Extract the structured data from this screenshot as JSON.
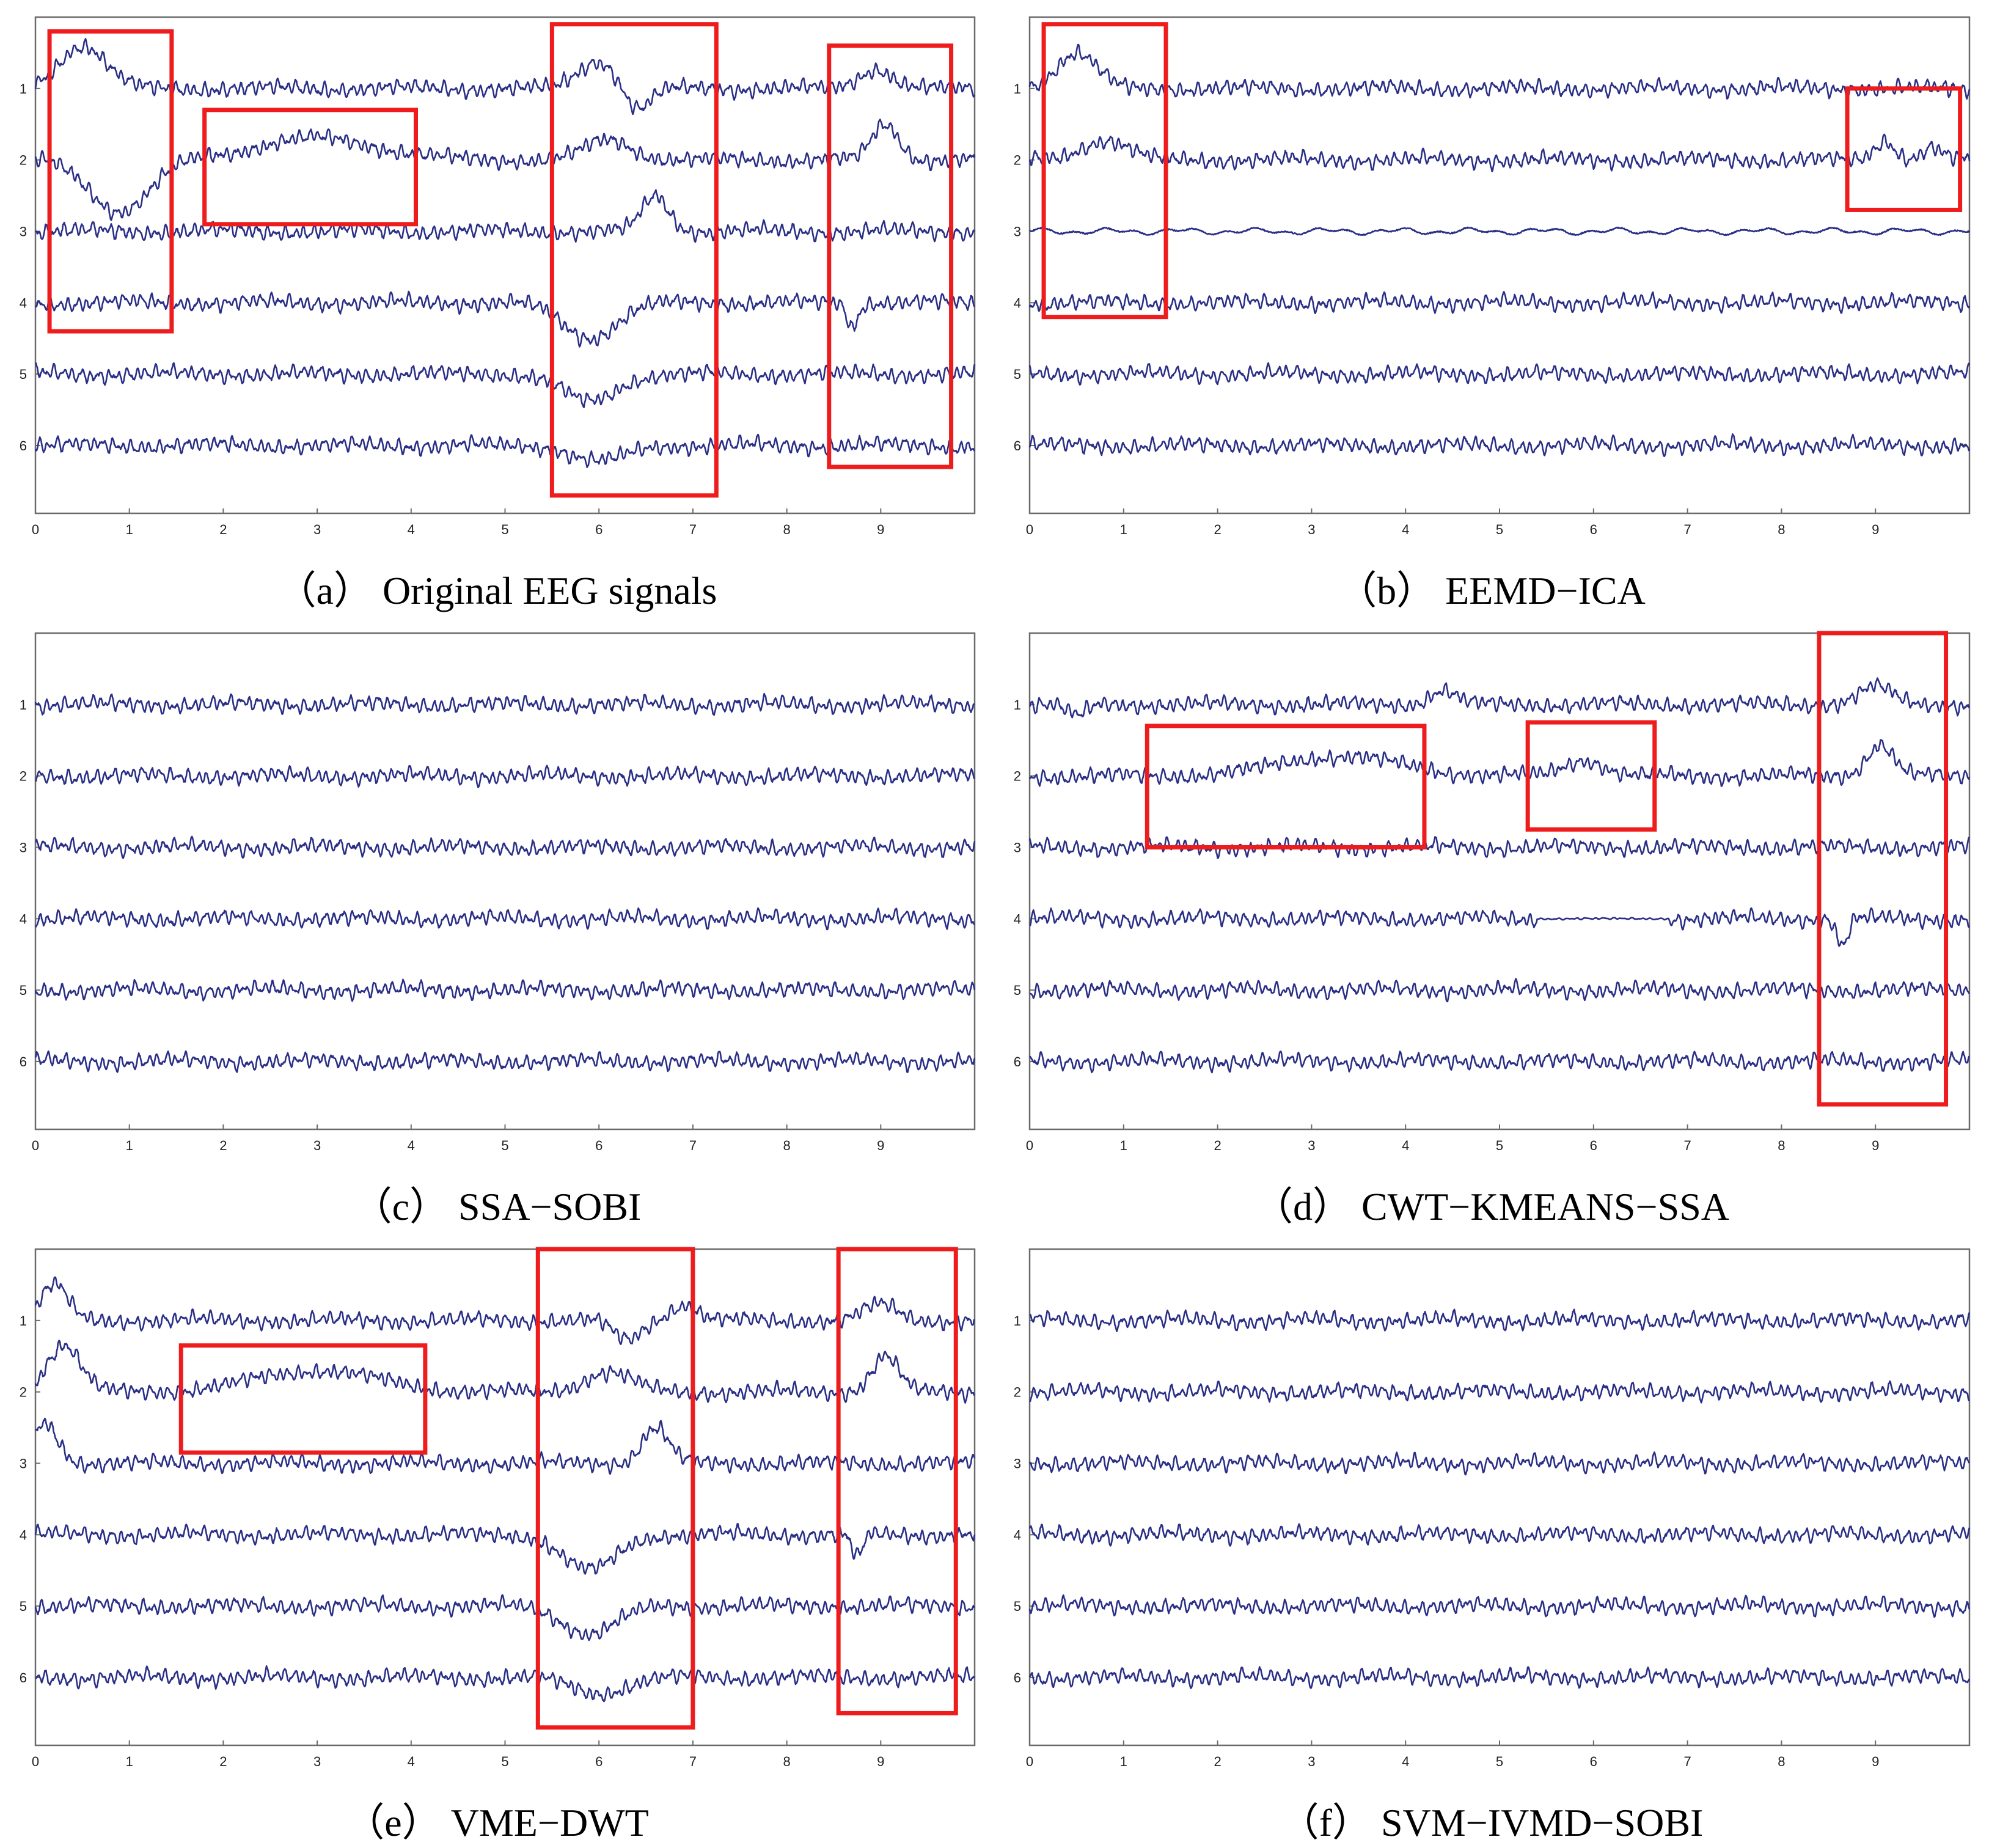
{
  "chart_data": [
    {
      "type": "line",
      "panel": "a",
      "caption": "（a） Original EEG signals",
      "x_ticks": [
        "0",
        "1",
        "2",
        "3",
        "4",
        "5",
        "6",
        "7",
        "8",
        "9"
      ],
      "channels": [
        "1",
        "2",
        "3",
        "4",
        "5",
        "6"
      ],
      "xlim": [
        0,
        10
      ],
      "grid": false,
      "highlight_boxes": [
        {
          "x": [
            0.15,
            1.45
          ],
          "channels": [
            0.2,
            4.4
          ]
        },
        {
          "x": [
            1.8,
            4.05
          ],
          "channels": [
            1.3,
            2.9
          ]
        },
        {
          "x": [
            5.5,
            7.25
          ],
          "channels": [
            0.1,
            6.7
          ]
        },
        {
          "x": [
            8.45,
            9.75
          ],
          "channels": [
            0.4,
            6.3
          ]
        }
      ],
      "artifacts": [
        {
          "channel": 1,
          "x": 0.5,
          "amp": 1.1,
          "width": 0.35
        },
        {
          "channel": 2,
          "x": 0.9,
          "amp": -1.3,
          "width": 0.45
        },
        {
          "channel": 2,
          "x": 3.0,
          "amp": 0.55,
          "width": 0.9
        },
        {
          "channel": 1,
          "x": 6.0,
          "amp": 0.7,
          "width": 0.3
        },
        {
          "channel": 1,
          "x": 6.4,
          "amp": -0.6,
          "width": 0.2
        },
        {
          "channel": 2,
          "x": 6.1,
          "amp": 0.5,
          "width": 0.35
        },
        {
          "channel": 3,
          "x": 6.6,
          "amp": 0.9,
          "width": 0.2
        },
        {
          "channel": 4,
          "x": 5.9,
          "amp": -0.9,
          "width": 0.4
        },
        {
          "channel": 5,
          "x": 5.9,
          "amp": -0.7,
          "width": 0.4
        },
        {
          "channel": 6,
          "x": 6.0,
          "amp": -0.4,
          "width": 0.4
        },
        {
          "channel": 1,
          "x": 8.95,
          "amp": 0.5,
          "width": 0.25
        },
        {
          "channel": 2,
          "x": 9.05,
          "amp": 0.9,
          "width": 0.2
        },
        {
          "channel": 4,
          "x": 8.7,
          "amp": -0.6,
          "width": 0.08
        }
      ]
    },
    {
      "type": "line",
      "panel": "b",
      "caption": "（b） EEMD−ICA",
      "x_ticks": [
        "0",
        "1",
        "2",
        "3",
        "4",
        "5",
        "6",
        "7",
        "8",
        "9"
      ],
      "channels": [
        "1",
        "2",
        "3",
        "4",
        "5",
        "6"
      ],
      "xlim": [
        0,
        10
      ],
      "grid": false,
      "highlight_boxes": [
        {
          "x": [
            0.15,
            1.45
          ],
          "channels": [
            0.1,
            4.2
          ]
        },
        {
          "x": [
            8.7,
            9.9
          ],
          "channels": [
            1.0,
            2.7
          ]
        }
      ],
      "artifacts": [
        {
          "channel": 1,
          "x": 0.5,
          "amp": 0.9,
          "width": 0.3
        },
        {
          "channel": 2,
          "x": 0.8,
          "amp": 0.5,
          "width": 0.35
        },
        {
          "channel": 2,
          "x": 9.1,
          "amp": 0.5,
          "width": 0.15
        },
        {
          "channel": 2,
          "x": 9.6,
          "amp": 0.3,
          "width": 0.15
        }
      ],
      "smooth_channels": [
        3
      ]
    },
    {
      "type": "line",
      "panel": "c",
      "caption": "（c） SSA−SOBI",
      "x_ticks": [
        "0",
        "1",
        "2",
        "3",
        "4",
        "5",
        "6",
        "7",
        "8",
        "9"
      ],
      "channels": [
        "1",
        "2",
        "3",
        "4",
        "5",
        "6"
      ],
      "xlim": [
        0,
        10
      ],
      "grid": false,
      "highlight_boxes": [],
      "artifacts": []
    },
    {
      "type": "line",
      "panel": "d",
      "caption": "（d） CWT−KMEANS−SSA",
      "x_ticks": [
        "0",
        "1",
        "2",
        "3",
        "4",
        "5",
        "6",
        "7",
        "8",
        "9"
      ],
      "channels": [
        "1",
        "2",
        "3",
        "4",
        "5",
        "6"
      ],
      "xlim": [
        0,
        10
      ],
      "grid": false,
      "highlight_boxes": [
        {
          "x": [
            1.25,
            4.2
          ],
          "channels": [
            1.3,
            3.0
          ]
        },
        {
          "x": [
            5.3,
            6.65
          ],
          "channels": [
            1.25,
            2.75
          ]
        },
        {
          "x": [
            8.4,
            9.75
          ],
          "channels": [
            0.0,
            6.6
          ]
        }
      ],
      "artifacts": [
        {
          "channel": 1,
          "x": 0.5,
          "amp": -0.3,
          "width": 0.15
        },
        {
          "channel": 1,
          "x": 4.4,
          "amp": 0.35,
          "width": 0.2
        },
        {
          "channel": 2,
          "x": 3.3,
          "amp": 0.5,
          "width": 0.9
        },
        {
          "channel": 2,
          "x": 5.9,
          "amp": 0.4,
          "width": 0.3
        },
        {
          "channel": 1,
          "x": 9.0,
          "amp": 0.45,
          "width": 0.25
        },
        {
          "channel": 2,
          "x": 9.05,
          "amp": 0.8,
          "width": 0.2
        },
        {
          "channel": 4,
          "x": 8.65,
          "amp": -0.7,
          "width": 0.08
        }
      ],
      "flat_segments": [
        {
          "channel": 4,
          "x": [
            5.4,
            6.8
          ]
        }
      ]
    },
    {
      "type": "line",
      "panel": "e",
      "caption": "（e） VME−DWT",
      "x_ticks": [
        "0",
        "1",
        "2",
        "3",
        "4",
        "5",
        "6",
        "7",
        "8",
        "9"
      ],
      "channels": [
        "1",
        "2",
        "3",
        "4",
        "5",
        "6"
      ],
      "xlim": [
        0,
        10
      ],
      "grid": false,
      "highlight_boxes": [
        {
          "x": [
            1.55,
            4.15
          ],
          "channels": [
            1.35,
            2.85
          ]
        },
        {
          "x": [
            5.35,
            7.0
          ],
          "channels": [
            0.0,
            6.7
          ]
        },
        {
          "x": [
            8.55,
            9.8
          ],
          "channels": [
            0.0,
            6.5
          ]
        }
      ],
      "artifacts": [
        {
          "channel": 1,
          "x": 0.2,
          "amp": 0.9,
          "width": 0.2
        },
        {
          "channel": 2,
          "x": 0.3,
          "amp": 1.2,
          "width": 0.25
        },
        {
          "channel": 3,
          "x": 0.1,
          "amp": 1.0,
          "width": 0.2
        },
        {
          "channel": 2,
          "x": 3.0,
          "amp": 0.55,
          "width": 0.9
        },
        {
          "channel": 1,
          "x": 6.3,
          "amp": -0.5,
          "width": 0.2
        },
        {
          "channel": 1,
          "x": 6.9,
          "amp": 0.4,
          "width": 0.2
        },
        {
          "channel": 2,
          "x": 6.1,
          "amp": 0.5,
          "width": 0.35
        },
        {
          "channel": 3,
          "x": 6.6,
          "amp": 0.9,
          "width": 0.2
        },
        {
          "channel": 4,
          "x": 5.9,
          "amp": -0.9,
          "width": 0.4
        },
        {
          "channel": 5,
          "x": 5.9,
          "amp": -0.7,
          "width": 0.4
        },
        {
          "channel": 6,
          "x": 6.0,
          "amp": -0.4,
          "width": 0.4
        },
        {
          "channel": 1,
          "x": 9.0,
          "amp": 0.4,
          "width": 0.25
        },
        {
          "channel": 2,
          "x": 9.05,
          "amp": 0.9,
          "width": 0.2
        },
        {
          "channel": 4,
          "x": 8.75,
          "amp": -0.6,
          "width": 0.08
        }
      ]
    },
    {
      "type": "line",
      "panel": "f",
      "caption": "（f） SVM−IVMD−SOBI",
      "x_ticks": [
        "0",
        "1",
        "2",
        "3",
        "4",
        "5",
        "6",
        "7",
        "8",
        "9"
      ],
      "channels": [
        "1",
        "2",
        "3",
        "4",
        "5",
        "6"
      ],
      "xlim": [
        0,
        10
      ],
      "grid": false,
      "highlight_boxes": [],
      "artifacts": []
    }
  ],
  "colors": {
    "trace": "#2a2f86",
    "highlight": "#ee1c1c",
    "frame": "#6b6b6b"
  }
}
